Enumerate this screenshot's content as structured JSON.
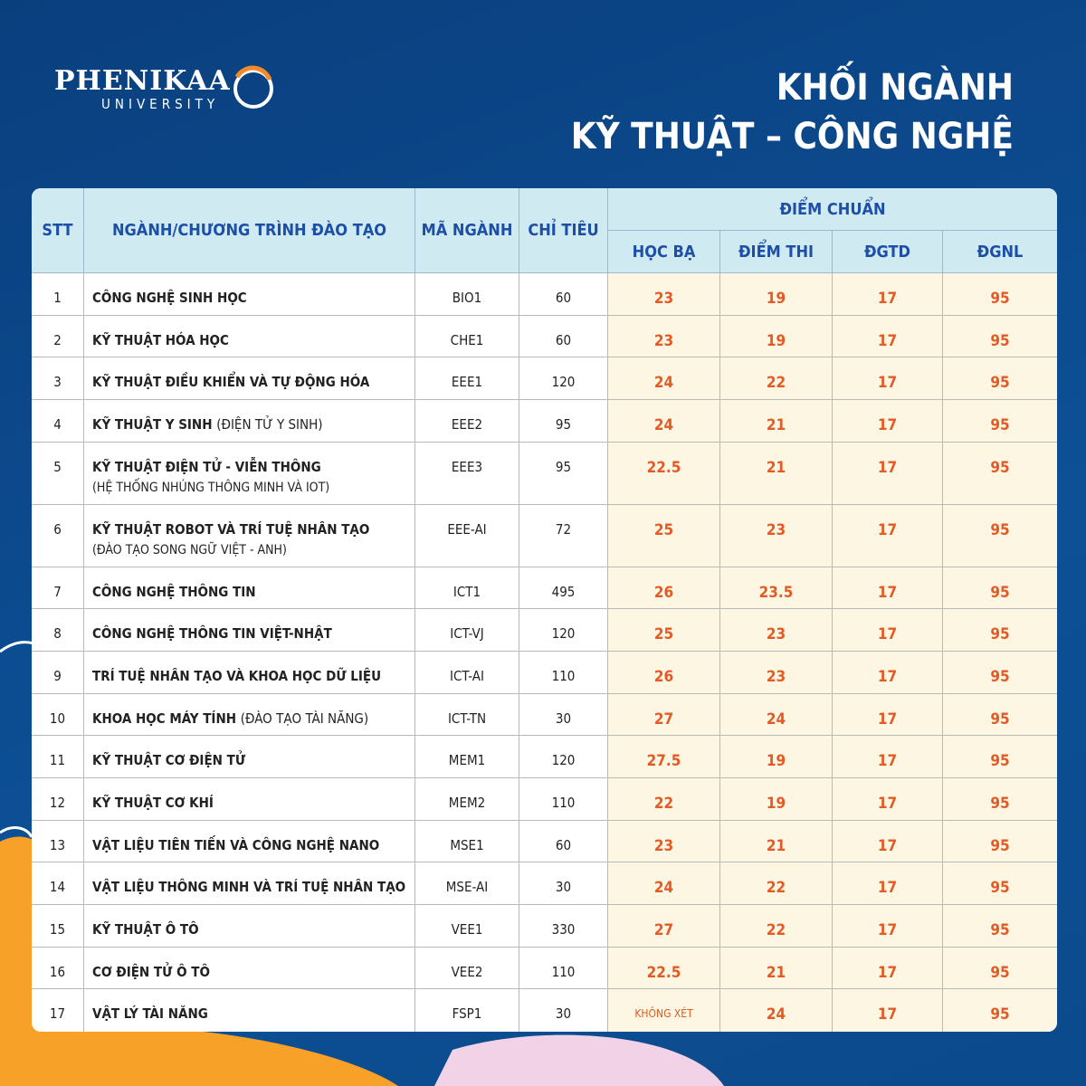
{
  "header": {
    "logo": "PHENIKAA",
    "logo_sub": "UNIVERSITY",
    "title_lines": [
      "KHỐI NGÀNH",
      "KỸ THUẬT – CÔNG NGHỆ"
    ]
  },
  "table": {
    "columns": [
      "STT",
      "NGÀNH/CHƯƠNG TRÌNH ĐÀO TẠO",
      "MÃ NGÀNH",
      "CHỈ TIÊU"
    ],
    "group": "ĐIỂM CHUẨN",
    "subcolumns": [
      "HỌC BẠ",
      "ĐIỂM THI",
      "ĐGTD",
      "ĐGNL"
    ],
    "rows": [
      {
        "stt": 1,
        "name": "CÔNG NGHỆ SINH HỌC",
        "code": "BIO1",
        "quota": 60,
        "scores": [
          23,
          19,
          17,
          95
        ]
      },
      {
        "stt": 2,
        "name": "KỸ THUẬT HÓA HỌC",
        "code": "CHE1",
        "quota": 60,
        "scores": [
          23,
          19,
          17,
          95
        ]
      },
      {
        "stt": 3,
        "name": "KỸ THUẬT ĐIỀU KHIỂN VÀ TỰ ĐỘNG HÓA",
        "code": "EEE1",
        "quota": 120,
        "scores": [
          24,
          22,
          17,
          95
        ]
      },
      {
        "stt": 4,
        "name": "KỸ THUẬT Y SINH",
        "note": "(ĐIỆN TỬ Y SINH)",
        "code": "EEE2",
        "quota": 95,
        "scores": [
          24,
          21,
          17,
          95
        ]
      },
      {
        "stt": 5,
        "name": "KỸ THUẬT ĐIỆN TỬ - VIỄN THÔNG",
        "detail": "(HỆ THỐNG NHÚNG THÔNG MINH VÀ IOT)",
        "code": "EEE3",
        "quota": 95,
        "scores": [
          22.5,
          21,
          17,
          95
        ]
      },
      {
        "stt": 6,
        "name": "KỸ THUẬT ROBOT VÀ TRÍ TUỆ NHÂN TẠO",
        "detail": "(ĐÀO TẠO SONG NGỮ VIỆT - ANH)",
        "code": "EEE-AI",
        "quota": 72,
        "scores": [
          25,
          23,
          17,
          95
        ]
      },
      {
        "stt": 7,
        "name": "CÔNG NGHỆ THÔNG TIN",
        "code": "ICT1",
        "quota": 495,
        "scores": [
          26,
          23.5,
          17,
          95
        ]
      },
      {
        "stt": 8,
        "name": "CÔNG NGHỆ THÔNG TIN VIỆT-NHẬT",
        "code": "ICT-VJ",
        "quota": 120,
        "scores": [
          25,
          23,
          17,
          95
        ]
      },
      {
        "stt": 9,
        "name": "TRÍ TUỆ NHÂN TẠO VÀ KHOA HỌC DỮ LIỆU",
        "code": "ICT-AI",
        "quota": 110,
        "scores": [
          26,
          23,
          17,
          95
        ]
      },
      {
        "stt": 10,
        "name": "KHOA HỌC MÁY TÍNH",
        "note": "(ĐÀO TẠO TÀI NĂNG)",
        "code": "ICT-TN",
        "quota": 30,
        "scores": [
          27,
          24,
          17,
          95
        ]
      },
      {
        "stt": 11,
        "name": "KỸ THUẬT CƠ ĐIỆN TỬ",
        "code": "MEM1",
        "quota": 120,
        "scores": [
          27.5,
          19,
          17,
          95
        ]
      },
      {
        "stt": 12,
        "name": "KỸ THUẬT CƠ KHÍ",
        "code": "MEM2",
        "quota": 110,
        "scores": [
          22,
          19,
          17,
          95
        ]
      },
      {
        "stt": 13,
        "name": "VẬT LIỆU TIÊN TIẾN VÀ CÔNG NGHỆ NANO",
        "code": "MSE1",
        "quota": 60,
        "scores": [
          23,
          21,
          17,
          95
        ]
      },
      {
        "stt": 14,
        "name": "VẬT LIỆU THÔNG MINH VÀ TRÍ TUỆ NHÂN TẠO",
        "code": "MSE-AI",
        "quota": 30,
        "scores": [
          24,
          22,
          17,
          95
        ]
      },
      {
        "stt": 15,
        "name": "KỸ THUẬT Ô TÔ",
        "code": "VEE1",
        "quota": 330,
        "scores": [
          27,
          22,
          17,
          95
        ]
      },
      {
        "stt": 16,
        "name": "CƠ ĐIỆN TỬ Ô TÔ",
        "code": "VEE2",
        "quota": 110,
        "scores": [
          22.5,
          21,
          17,
          95
        ]
      },
      {
        "stt": 17,
        "name": "VẬT LÝ TÀI NĂNG",
        "code": "FSP1",
        "quota": 30,
        "scores": [
          "KHÔNG XÉT",
          24,
          17,
          95
        ]
      }
    ]
  }
}
